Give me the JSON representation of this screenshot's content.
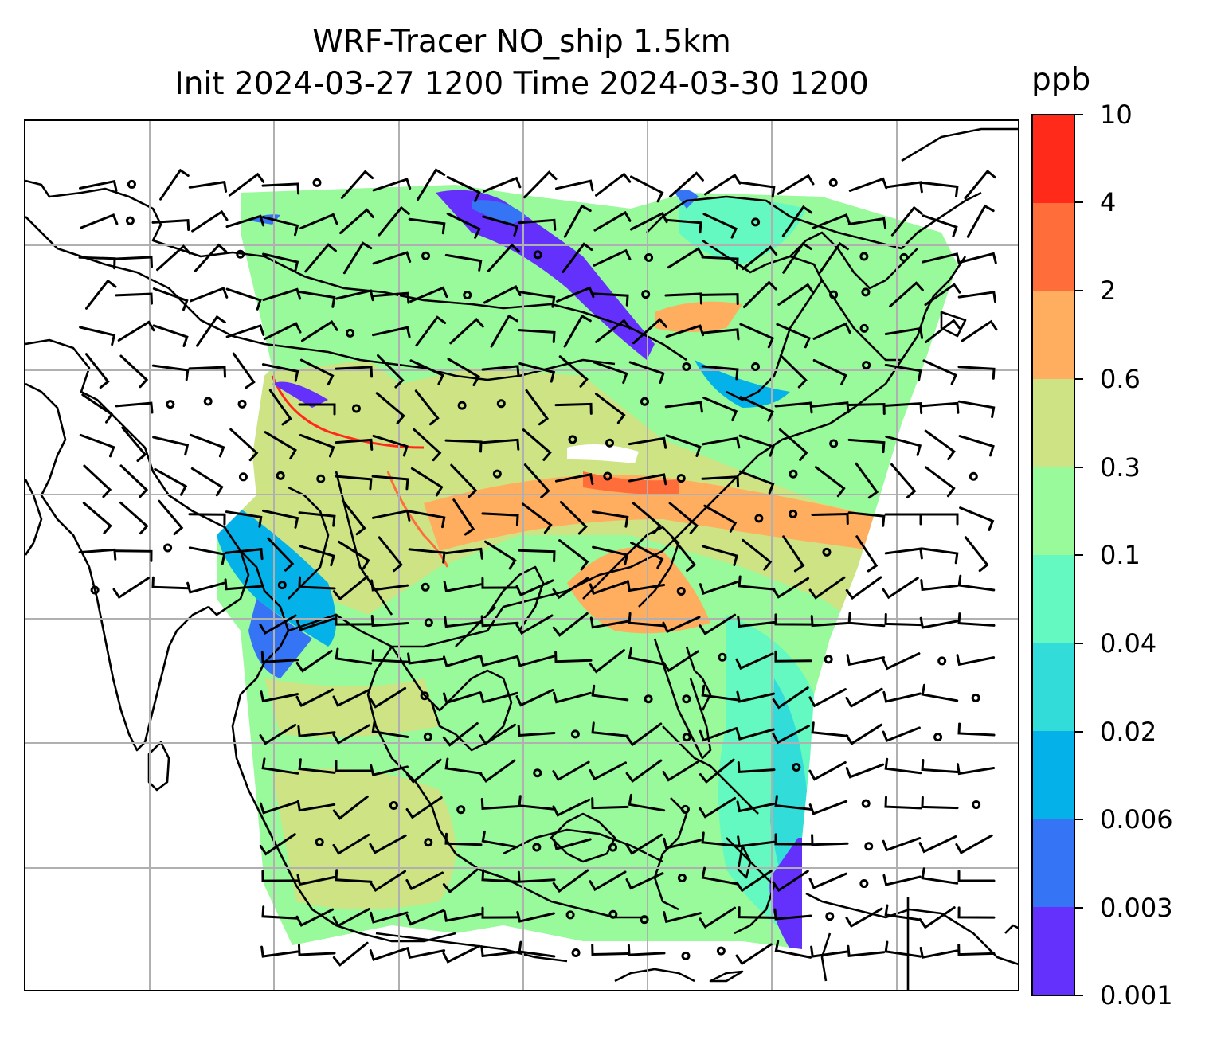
{
  "title_line1": "WRF-Tracer NO_ship 1.5km",
  "title_line2": "Init 2024-03-27 1200 Time 2024-03-30 1200",
  "colorbar": {
    "unit": "ppb",
    "tick_labels": [
      "10",
      "4",
      "2",
      "0.6",
      "0.3",
      "0.1",
      "0.04",
      "0.02",
      "0.006",
      "0.003",
      "0.001"
    ],
    "colors_top_to_bottom": [
      "#ff2a1a",
      "#ff6e3a",
      "#ffad5e",
      "#cde384",
      "#98fa9a",
      "#63f9c0",
      "#31dcd9",
      "#04b2e9",
      "#3474f5",
      "#6430fb"
    ]
  },
  "map": {
    "field": "NO_ship",
    "level": "1.5km",
    "gridlines": true,
    "wind_barbs": true,
    "coastlines": true,
    "background_color": "#ffffff"
  }
}
